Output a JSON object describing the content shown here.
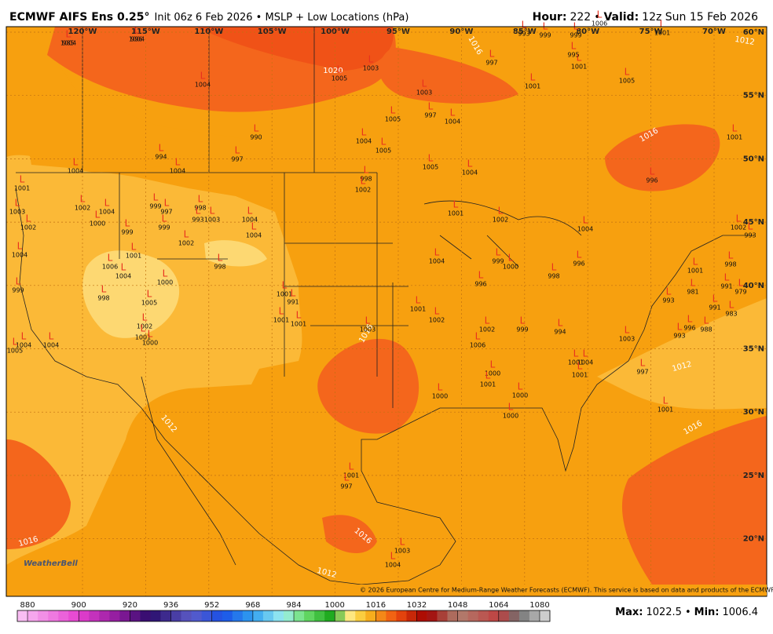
{
  "header": {
    "title": "ECMWF AIFS Ens 0.25°",
    "subtitle": "Init 06z 6 Feb 2026 • MSLP + Low Locations (hPa)",
    "hour_label": "Hour:",
    "hour": "222",
    "separator": "•",
    "valid_label": "Valid:",
    "valid": "12z Sun 15 Feb 2026"
  },
  "longitudes": [
    "120°W",
    "115°W",
    "110°W",
    "105°W",
    "100°W",
    "95°W",
    "90°W",
    "85°W",
    "80°W",
    "75°W",
    "70°W"
  ],
  "latitudes": [
    "60°N",
    "55°N",
    "50°N",
    "45°N",
    "40°N",
    "35°N",
    "30°N",
    "25°N",
    "20°N"
  ],
  "contour_labels": [
    "1020",
    "1016",
    "1016",
    "1016",
    "1016",
    "1016",
    "1016",
    "1012",
    "1012",
    "1012",
    "1012"
  ],
  "low_symbol": "L",
  "lows": [
    1004,
    1004,
    1004,
    1005,
    1003,
    1003,
    997,
    1004,
    1005,
    990,
    1004,
    1005,
    997,
    994,
    1004,
    1004,
    1005,
    1004,
    998,
    1002,
    1001,
    1002,
    997,
    1001,
    1001,
    1005,
    1001,
    1001,
    996,
    1006,
    999,
    995,
    999,
    993,
    1004,
    996,
    999,
    1000,
    998,
    996,
    1001,
    998,
    991,
    981,
    979,
    991,
    983,
    993,
    996,
    988,
    993,
    997,
    1001,
    1001,
    1004,
    1001,
    1000,
    1001,
    1000,
    1000,
    1000,
    1006,
    1002,
    999,
    994,
    1003,
    1001,
    1002,
    1003,
    1001,
    997,
    1004,
    1003,
    1006,
    1004,
    1001,
    998,
    1004,
    1005,
    1004,
    999,
    1004,
    1001,
    1003,
    1002,
    1002,
    1004,
    1000,
    999,
    999,
    997,
    999,
    1002,
    998,
    993,
    1003,
    1004,
    1004,
    998,
    1001,
    991,
    1001,
    1001,
    1005,
    1000,
    1002,
    1001,
    1000,
    1004,
    1002,
    993,
    985,
    996
  ],
  "colorbar": {
    "range": [
      876,
      1084
    ],
    "ticks": [
      880,
      900,
      920,
      936,
      952,
      968,
      984,
      1000,
      1016,
      1032,
      1048,
      1064,
      1080
    ]
  },
  "copyright": "© 2026 European Centre for Medium-Range Weather Forecasts (ECMWF). This service is based on data and products of the ECMWF.",
  "logo": "WeatherBell",
  "footer": {
    "max_label": "Max:",
    "max": "1022.5",
    "separator": "•",
    "min_label": "Min:",
    "min": "1006.4"
  }
}
